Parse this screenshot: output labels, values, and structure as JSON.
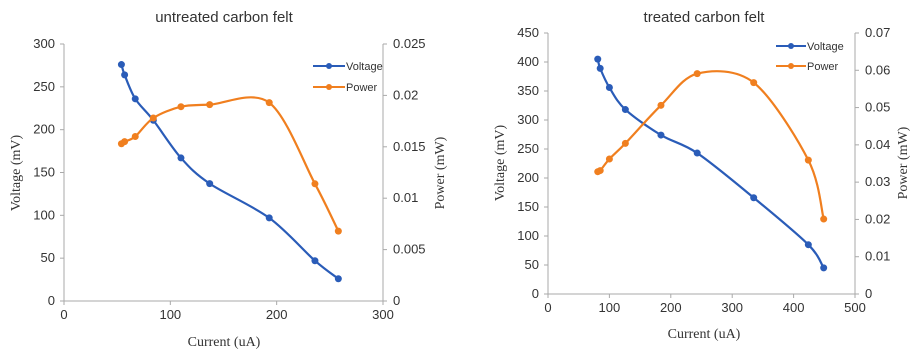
{
  "colors": {
    "voltage": "#2a5cb8",
    "power": "#f07f1f",
    "axis": "#a9a9a9",
    "text": "#333333",
    "background": "#ffffff"
  },
  "chart_data": [
    {
      "type": "line",
      "title": "untreated carbon felt",
      "xlabel": "Current (uA)",
      "ylabel_left": "Voltage (mV)",
      "ylabel_right": "Power (mW)",
      "xlim": [
        0,
        300
      ],
      "ylim_left": [
        0,
        300
      ],
      "ylim_right": [
        0,
        0.025
      ],
      "xticks": [
        "0",
        "100",
        "200",
        "300"
      ],
      "yticks_left": [
        "0",
        "50",
        "100",
        "150",
        "200",
        "250",
        "300"
      ],
      "yticks_right": [
        "0",
        "0.005",
        "0.01",
        "0.015",
        "0.02",
        "0.025"
      ],
      "grid": false,
      "legend_position": "top-right",
      "series": [
        {
          "name": "Voltage",
          "axis": "left",
          "color": "#2a5cb8",
          "points": [
            [
              54,
              276
            ],
            [
              57,
              264
            ],
            [
              67,
              236
            ],
            [
              84,
              211
            ],
            [
              110,
              167
            ],
            [
              137,
              137
            ],
            [
              193,
              97
            ],
            [
              236,
              47
            ],
            [
              258,
              26
            ]
          ]
        },
        {
          "name": "Power",
          "axis": "right",
          "color": "#f07f1f",
          "points": [
            [
              54,
              0.0153
            ],
            [
              57,
              0.0155
            ],
            [
              67,
              0.016
            ],
            [
              84,
              0.0178
            ],
            [
              110,
              0.0189
            ],
            [
              137,
              0.0191
            ],
            [
              193,
              0.0193
            ],
            [
              236,
              0.0114
            ],
            [
              258,
              0.0068
            ]
          ]
        }
      ]
    },
    {
      "type": "line",
      "title": "treated carbon felt",
      "xlabel": "Current (uA)",
      "ylabel_left": "Voltage (mV)",
      "ylabel_right": "Power (mW)",
      "xlim": [
        0,
        500
      ],
      "ylim_left": [
        0,
        450
      ],
      "ylim_right": [
        0,
        0.07
      ],
      "xticks": [
        "0",
        "100",
        "200",
        "300",
        "400",
        "500"
      ],
      "yticks_left": [
        "0",
        "50",
        "100",
        "150",
        "200",
        "250",
        "300",
        "350",
        "400",
        "450"
      ],
      "yticks_right": [
        "0",
        "0.01",
        "0.02",
        "0.03",
        "0.04",
        "0.05",
        "0.06",
        "0.07"
      ],
      "grid": false,
      "legend_position": "top-right",
      "series": [
        {
          "name": "Voltage",
          "axis": "left",
          "color": "#2a5cb8",
          "points": [
            [
              81,
              405
            ],
            [
              85,
              389
            ],
            [
              100,
              356
            ],
            [
              126,
              318
            ],
            [
              184,
              274
            ],
            [
              243,
              243
            ],
            [
              335,
              166
            ],
            [
              424,
              85
            ],
            [
              449,
              45
            ]
          ]
        },
        {
          "name": "Power",
          "axis": "right",
          "color": "#f07f1f",
          "points": [
            [
              81,
              0.0328
            ],
            [
              85,
              0.0331
            ],
            [
              100,
              0.0362
            ],
            [
              126,
              0.0404
            ],
            [
              184,
              0.0506
            ],
            [
              243,
              0.0591
            ],
            [
              335,
              0.0567
            ],
            [
              424,
              0.0359
            ],
            [
              449,
              0.0201
            ]
          ]
        }
      ]
    }
  ]
}
